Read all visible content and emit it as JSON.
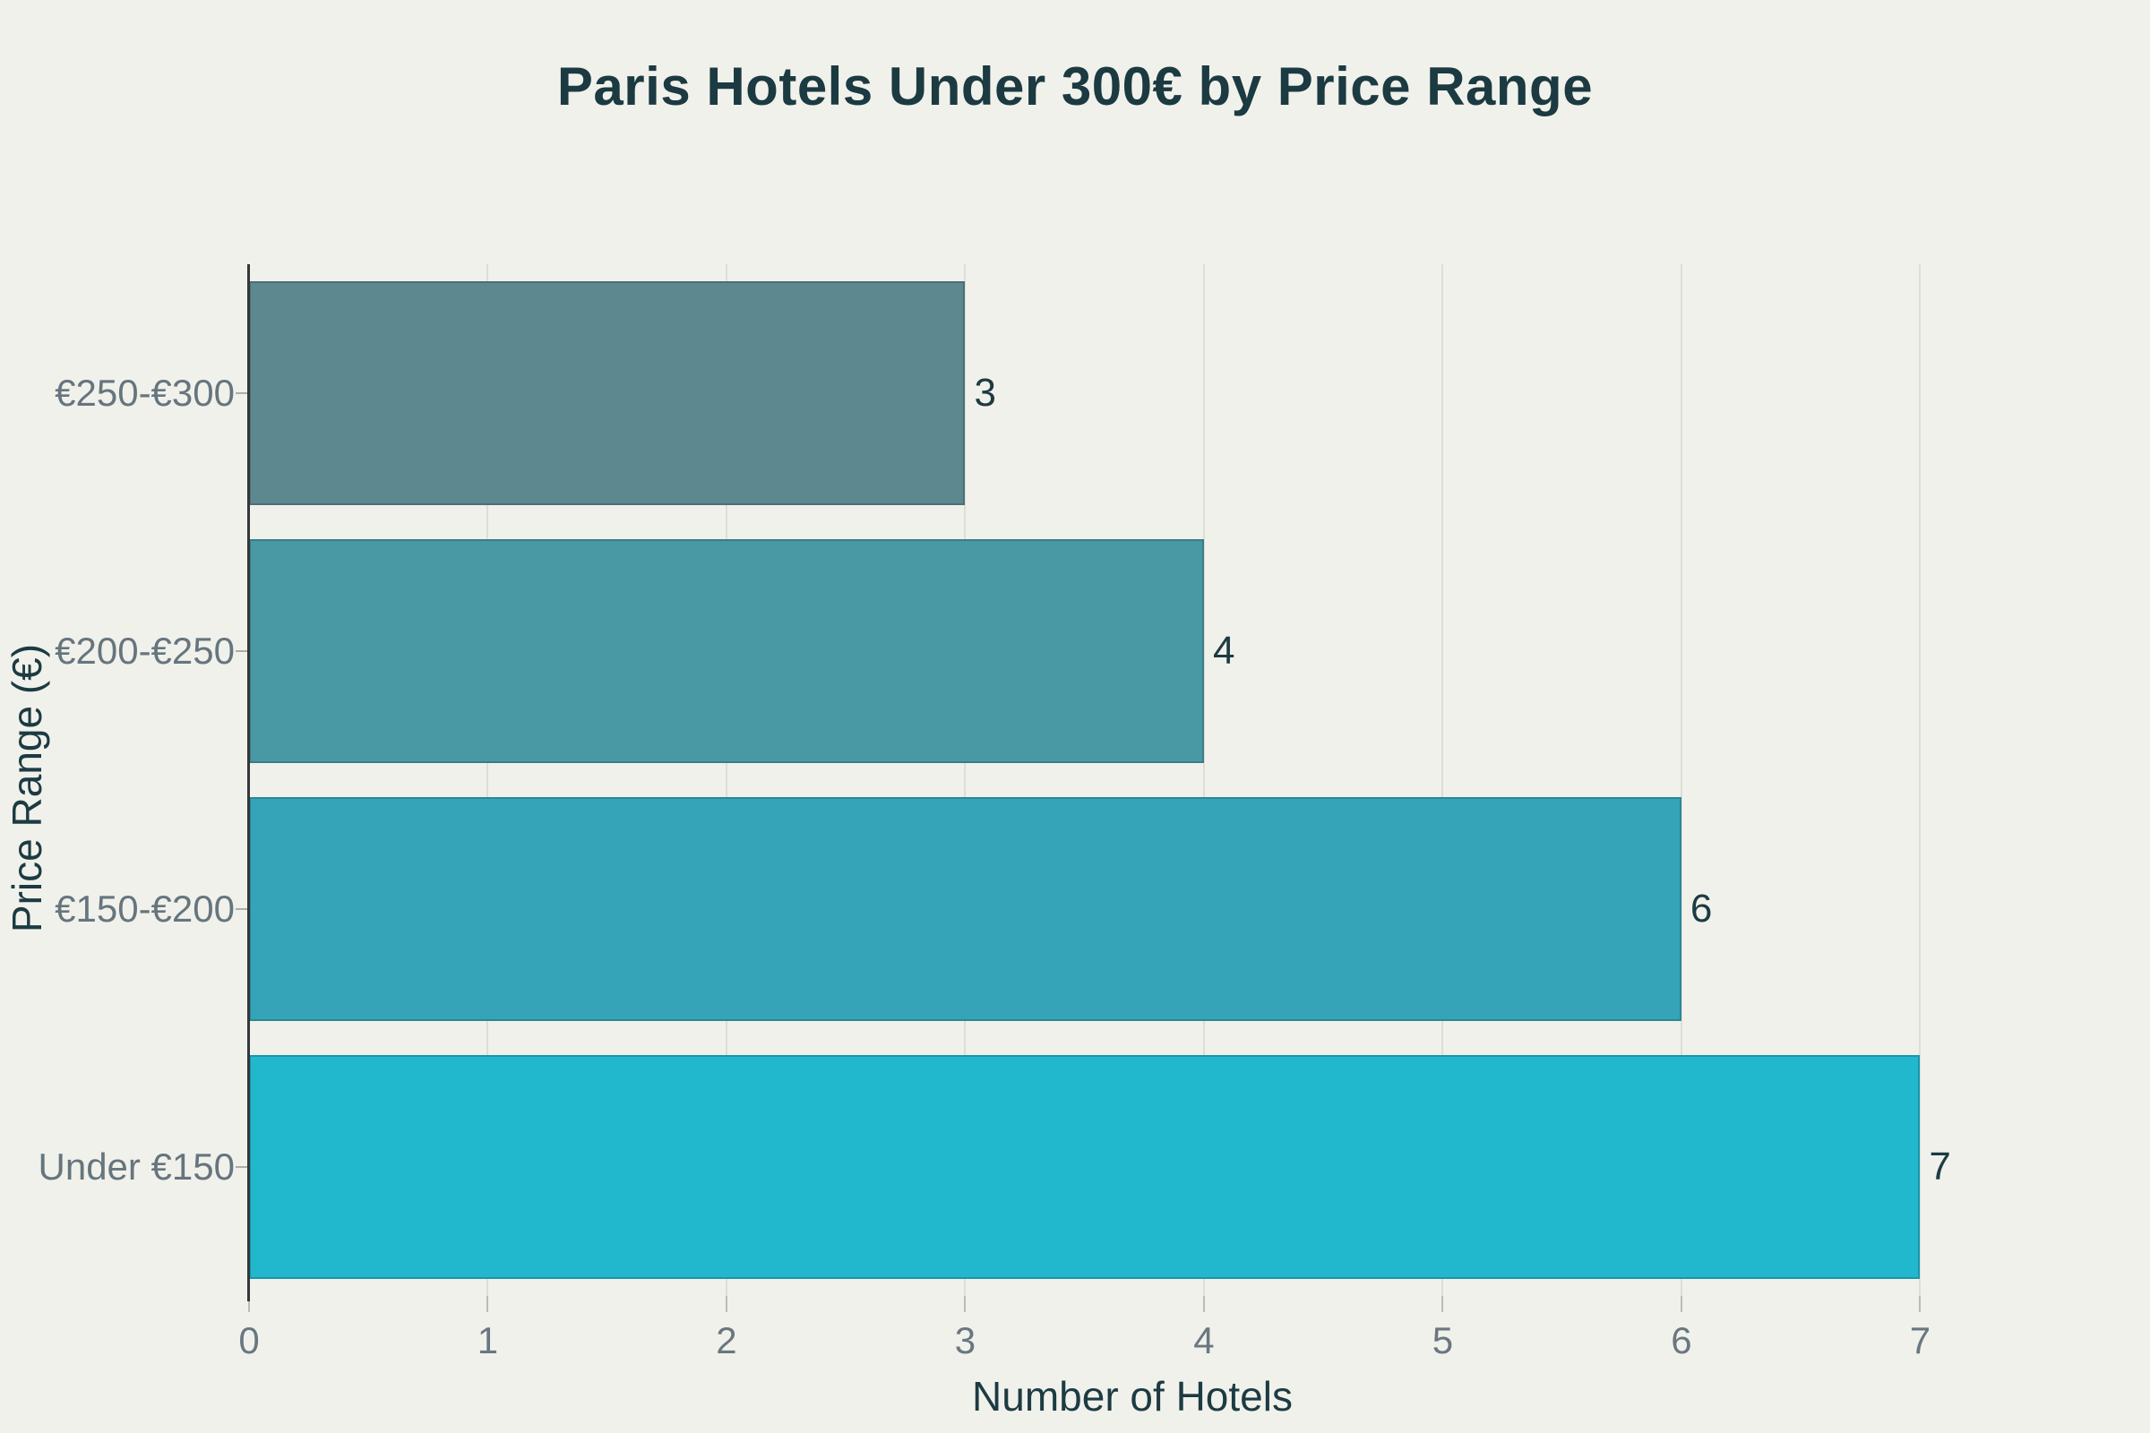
{
  "title": "Paris Hotels Under 300€ by Price Range",
  "chart_data": {
    "type": "bar",
    "orientation": "horizontal",
    "title": "Paris Hotels Under 300€ by Price Range",
    "xlabel": "Number of Hotels",
    "ylabel": "Price Range (€)",
    "xlim": [
      0,
      7.4
    ],
    "xticks": [
      0,
      1,
      2,
      3,
      4,
      5,
      6,
      7
    ],
    "grid": "vertical-only",
    "legend": "none",
    "bars_top_to_bottom": [
      {
        "category": "€250-€300",
        "value": 3,
        "value_label": "3",
        "color": "#5D888F"
      },
      {
        "category": "€200-€250",
        "value": 4,
        "value_label": "4",
        "color": "#4899A4"
      },
      {
        "category": "€150-€200",
        "value": 6,
        "value_label": "6",
        "color": "#35A4B8"
      },
      {
        "category": "Under €150",
        "value": 7,
        "value_label": "7",
        "color": "#21B8CE"
      }
    ]
  },
  "colors": {
    "background": "#F1F1EB",
    "title_text": "#1B3A41",
    "axis_title_text": "#1C3B42",
    "tick_label_text": "#6A7780",
    "value_label_text": "#1C3B42",
    "gridline": "#DEDED8",
    "zeroline": "#33383B",
    "tick_mark": "#BCBCB6"
  }
}
